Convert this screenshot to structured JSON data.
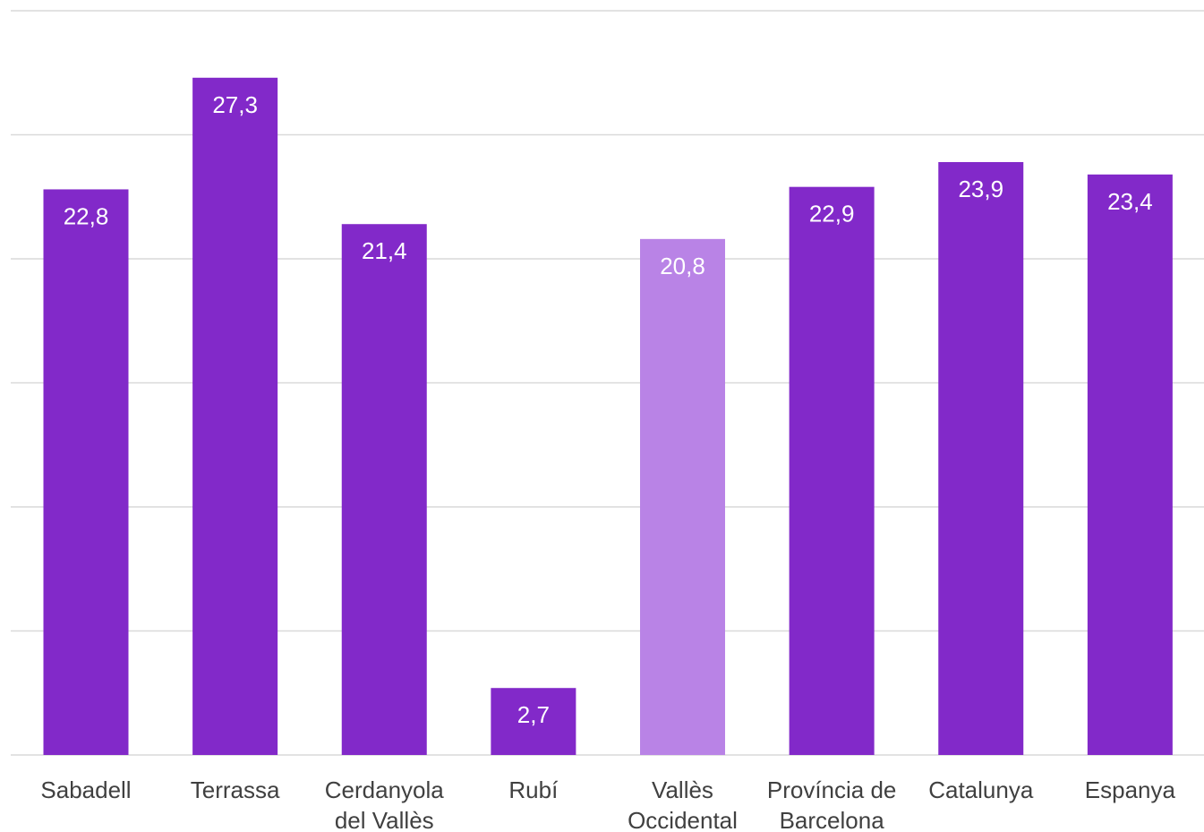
{
  "chart_data": {
    "type": "bar",
    "title": "",
    "xlabel": "",
    "ylabel": "",
    "ylim": [
      0,
      30
    ],
    "grid": true,
    "y_tick_values": [
      0,
      5,
      10,
      15,
      20,
      25,
      30
    ],
    "y_tick_labels_shown": false,
    "categories": [
      [
        "Sabadell"
      ],
      [
        "Terrassa"
      ],
      [
        "Cerdanyola",
        "del Vallès"
      ],
      [
        "Rubí"
      ],
      [
        "Vallès",
        "Occidental"
      ],
      [
        "Província de",
        "Barcelona"
      ],
      [
        "Catalunya"
      ],
      [
        "Espanya"
      ]
    ],
    "values": [
      22.8,
      27.3,
      21.4,
      2.7,
      20.8,
      22.9,
      23.9,
      23.4
    ],
    "value_labels": [
      "22,8",
      "27,3",
      "21,4",
      "2,7",
      "20,8",
      "22,9",
      "23,9",
      "23,4"
    ],
    "highlight_index": 4,
    "colors": {
      "bar": "#8229c9",
      "highlight": "#b983e6",
      "bar_label": "#ffffff",
      "tick_label": "#404040",
      "grid": "#d9d9d9"
    }
  }
}
